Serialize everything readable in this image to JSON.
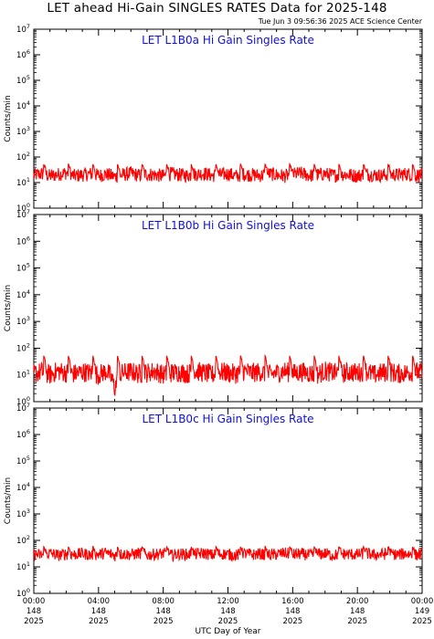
{
  "header": {
    "title": "LET ahead Hi-Gain SINGLES RATES Data for 2025-148",
    "timestamp": "Tue Jun  3 09:56:36 2025 ACE Science Center"
  },
  "chart_data": [
    {
      "type": "line",
      "title": "LET L1B0a Hi Gain Singles Rate",
      "ylabel": "Counts/min",
      "yscale": "log",
      "ylim": [
        1,
        10000000
      ],
      "y_tick_exponents": [
        "0",
        "1",
        "2",
        "3",
        "4",
        "5",
        "6",
        "7"
      ],
      "xlim": [
        0,
        24
      ],
      "series": [
        {
          "color": "#ff0000",
          "baseline": 20,
          "noise": 0.55,
          "spike": 55,
          "x_hours": [
            0,
            0.5,
            1,
            1.5,
            2,
            2.5,
            3,
            3.5,
            4,
            4.5,
            5,
            5.5,
            6,
            6.5,
            7,
            7.5,
            8,
            8.5,
            9,
            9.5,
            10,
            10.5,
            11,
            11.5,
            12,
            12.5,
            13,
            13.5,
            14,
            14.5,
            15,
            15.5,
            16,
            16.5,
            17,
            17.5,
            18,
            18.5,
            19,
            19.5,
            20,
            20.5,
            21,
            21.5,
            22,
            22.5,
            23,
            23.5,
            24
          ],
          "values": [
            19,
            22,
            18,
            21,
            24,
            18,
            20,
            22,
            19,
            21,
            17,
            20,
            23,
            19,
            21,
            20,
            18,
            22,
            20,
            19,
            21,
            23,
            19,
            20,
            22,
            18,
            21,
            20,
            19,
            22,
            20,
            18,
            21,
            23,
            19,
            20,
            22,
            19,
            21,
            20,
            18,
            22,
            20,
            19,
            21,
            20,
            22,
            19,
            20
          ]
        }
      ]
    },
    {
      "type": "line",
      "title": "LET L1B0b Hi Gain Singles Rate",
      "ylabel": "Counts/min",
      "yscale": "log",
      "ylim": [
        1,
        10000000
      ],
      "y_tick_exponents": [
        "0",
        "1",
        "2",
        "3",
        "4",
        "5",
        "6",
        "7"
      ],
      "xlim": [
        0,
        24
      ],
      "series": [
        {
          "color": "#ff0000",
          "baseline": 12,
          "noise": 0.75,
          "spike": 55,
          "x_hours": [
            0,
            0.5,
            1,
            1.5,
            2,
            2.5,
            3,
            3.5,
            4,
            4.5,
            5,
            5.5,
            6,
            6.5,
            7,
            7.5,
            8,
            8.5,
            9,
            9.5,
            10,
            10.5,
            11,
            11.5,
            12,
            12.5,
            13,
            13.5,
            14,
            14.5,
            15,
            15.5,
            16,
            16.5,
            17,
            17.5,
            18,
            18.5,
            19,
            19.5,
            20,
            20.5,
            21,
            21.5,
            22,
            22.5,
            23,
            23.5,
            24
          ],
          "values": [
            11,
            13,
            10,
            14,
            12,
            11,
            13,
            12,
            10,
            14,
            3,
            12,
            13,
            11,
            12,
            14,
            10,
            12,
            13,
            11,
            14,
            12,
            10,
            13,
            12,
            11,
            14,
            12,
            13,
            10,
            12,
            14,
            11,
            13,
            12,
            10,
            14,
            12,
            11,
            13,
            12,
            14,
            10,
            12,
            13,
            11,
            12,
            13,
            12
          ]
        }
      ]
    },
    {
      "type": "line",
      "title": "LET L1B0c Hi Gain Singles Rate",
      "ylabel": "Counts/min",
      "yscale": "log",
      "ylim": [
        1,
        10000000
      ],
      "y_tick_exponents": [
        "0",
        "1",
        "2",
        "3",
        "4",
        "5",
        "6",
        "7"
      ],
      "xlim": [
        0,
        24
      ],
      "series": [
        {
          "color": "#ff0000",
          "baseline": 30,
          "noise": 0.45,
          "spike": 60,
          "x_hours": [
            0,
            0.5,
            1,
            1.5,
            2,
            2.5,
            3,
            3.5,
            4,
            4.5,
            5,
            5.5,
            6,
            6.5,
            7,
            7.5,
            8,
            8.5,
            9,
            9.5,
            10,
            10.5,
            11,
            11.5,
            12,
            12.5,
            13,
            13.5,
            14,
            14.5,
            15,
            15.5,
            16,
            16.5,
            17,
            17.5,
            18,
            18.5,
            19,
            19.5,
            20,
            20.5,
            21,
            21.5,
            22,
            22.5,
            23,
            23.5,
            24
          ],
          "values": [
            30,
            28,
            33,
            27,
            31,
            29,
            32,
            28,
            30,
            34,
            27,
            31,
            29,
            33,
            28,
            30,
            32,
            27,
            31,
            29,
            30,
            33,
            28,
            31,
            30,
            27,
            32,
            29,
            31,
            28,
            30,
            33,
            29,
            31,
            28,
            30,
            32,
            27,
            31,
            30,
            29,
            33,
            28,
            30,
            31,
            29,
            32,
            28,
            30
          ]
        }
      ]
    }
  ],
  "x_axis": {
    "label": "UTC Day of Year",
    "ticks": [
      {
        "hour": 0,
        "time": "00:00",
        "day": "148",
        "year": "2025"
      },
      {
        "hour": 4,
        "time": "04:00",
        "day": "148",
        "year": "2025"
      },
      {
        "hour": 8,
        "time": "08:00",
        "day": "148",
        "year": "2025"
      },
      {
        "hour": 12,
        "time": "12:00",
        "day": "148",
        "year": "2025"
      },
      {
        "hour": 16,
        "time": "16:00",
        "day": "148",
        "year": "2025"
      },
      {
        "hour": 20,
        "time": "20:00",
        "day": "148",
        "year": "2025"
      },
      {
        "hour": 24,
        "time": "00:00",
        "day": "149",
        "year": "2025"
      }
    ]
  }
}
